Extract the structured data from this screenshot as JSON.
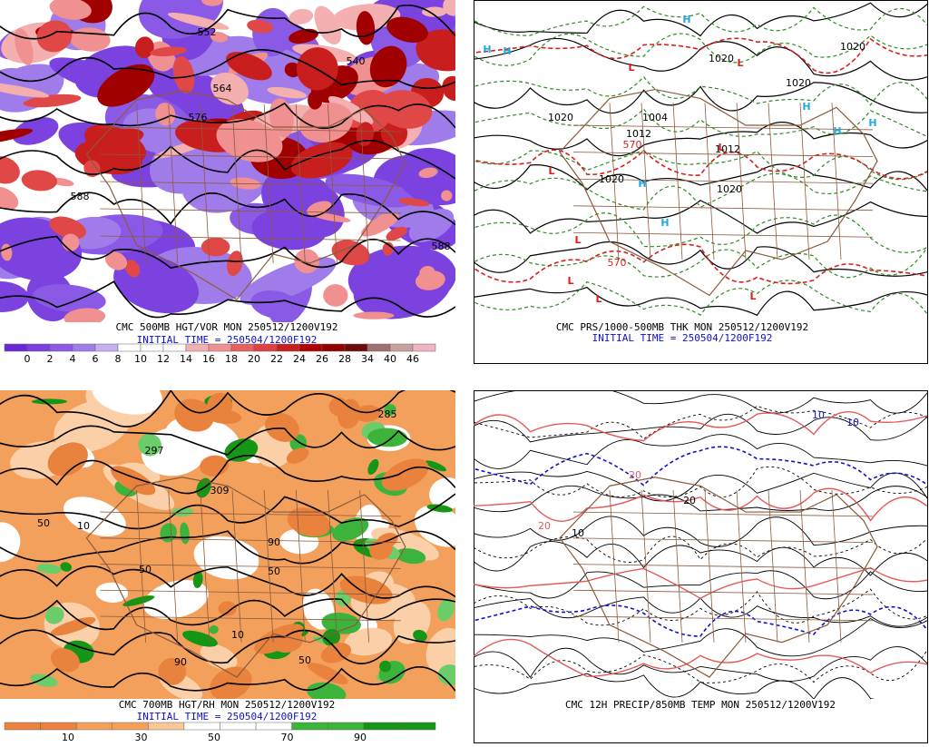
{
  "panels": [
    {
      "caption": "CMC 500MB HGT/VOR MON 250512/1200V192",
      "initial": "INITIAL TIME = 250504/1200F192",
      "contour_labels": [
        "552",
        "540",
        "564",
        "576",
        "588",
        "588"
      ],
      "colorbar": [
        "0",
        "2",
        "4",
        "6",
        "8",
        "10",
        "12",
        "14",
        "16",
        "18",
        "20",
        "22",
        "24",
        "26",
        "28",
        "34",
        "40",
        "46"
      ]
    },
    {
      "caption": "CMC PRS/1000-500MB THK MON 250512/1200V192",
      "initial": "INITIAL TIME = 250504/1200F192",
      "symbols": [
        "H",
        "H",
        "H",
        "L",
        "L",
        "H",
        "H",
        "H",
        "L",
        "L",
        "H",
        "H",
        "L",
        "L",
        "L",
        "L"
      ],
      "contour_labels": [
        "1020",
        "1020",
        "1020",
        "1004",
        "1012",
        "1020",
        "1020",
        "1012",
        "1020",
        "570",
        "570"
      ]
    },
    {
      "caption": "CMC 700MB HGT/RH MON 250512/1200V192",
      "initial": "INITIAL TIME = 250504/1200F192",
      "contour_labels": [
        "297",
        "309",
        "285",
        "50",
        "10",
        "50",
        "90",
        "50",
        "10",
        "90",
        "50"
      ],
      "colorbar": [
        "10",
        "30",
        "50",
        "70",
        "90"
      ]
    },
    {
      "caption": "CMC 12H PRECIP/850MB TEMP MON 250512/1200V192",
      "contour_labels": [
        "10",
        "10",
        "20",
        "20",
        "10",
        "20"
      ]
    }
  ]
}
